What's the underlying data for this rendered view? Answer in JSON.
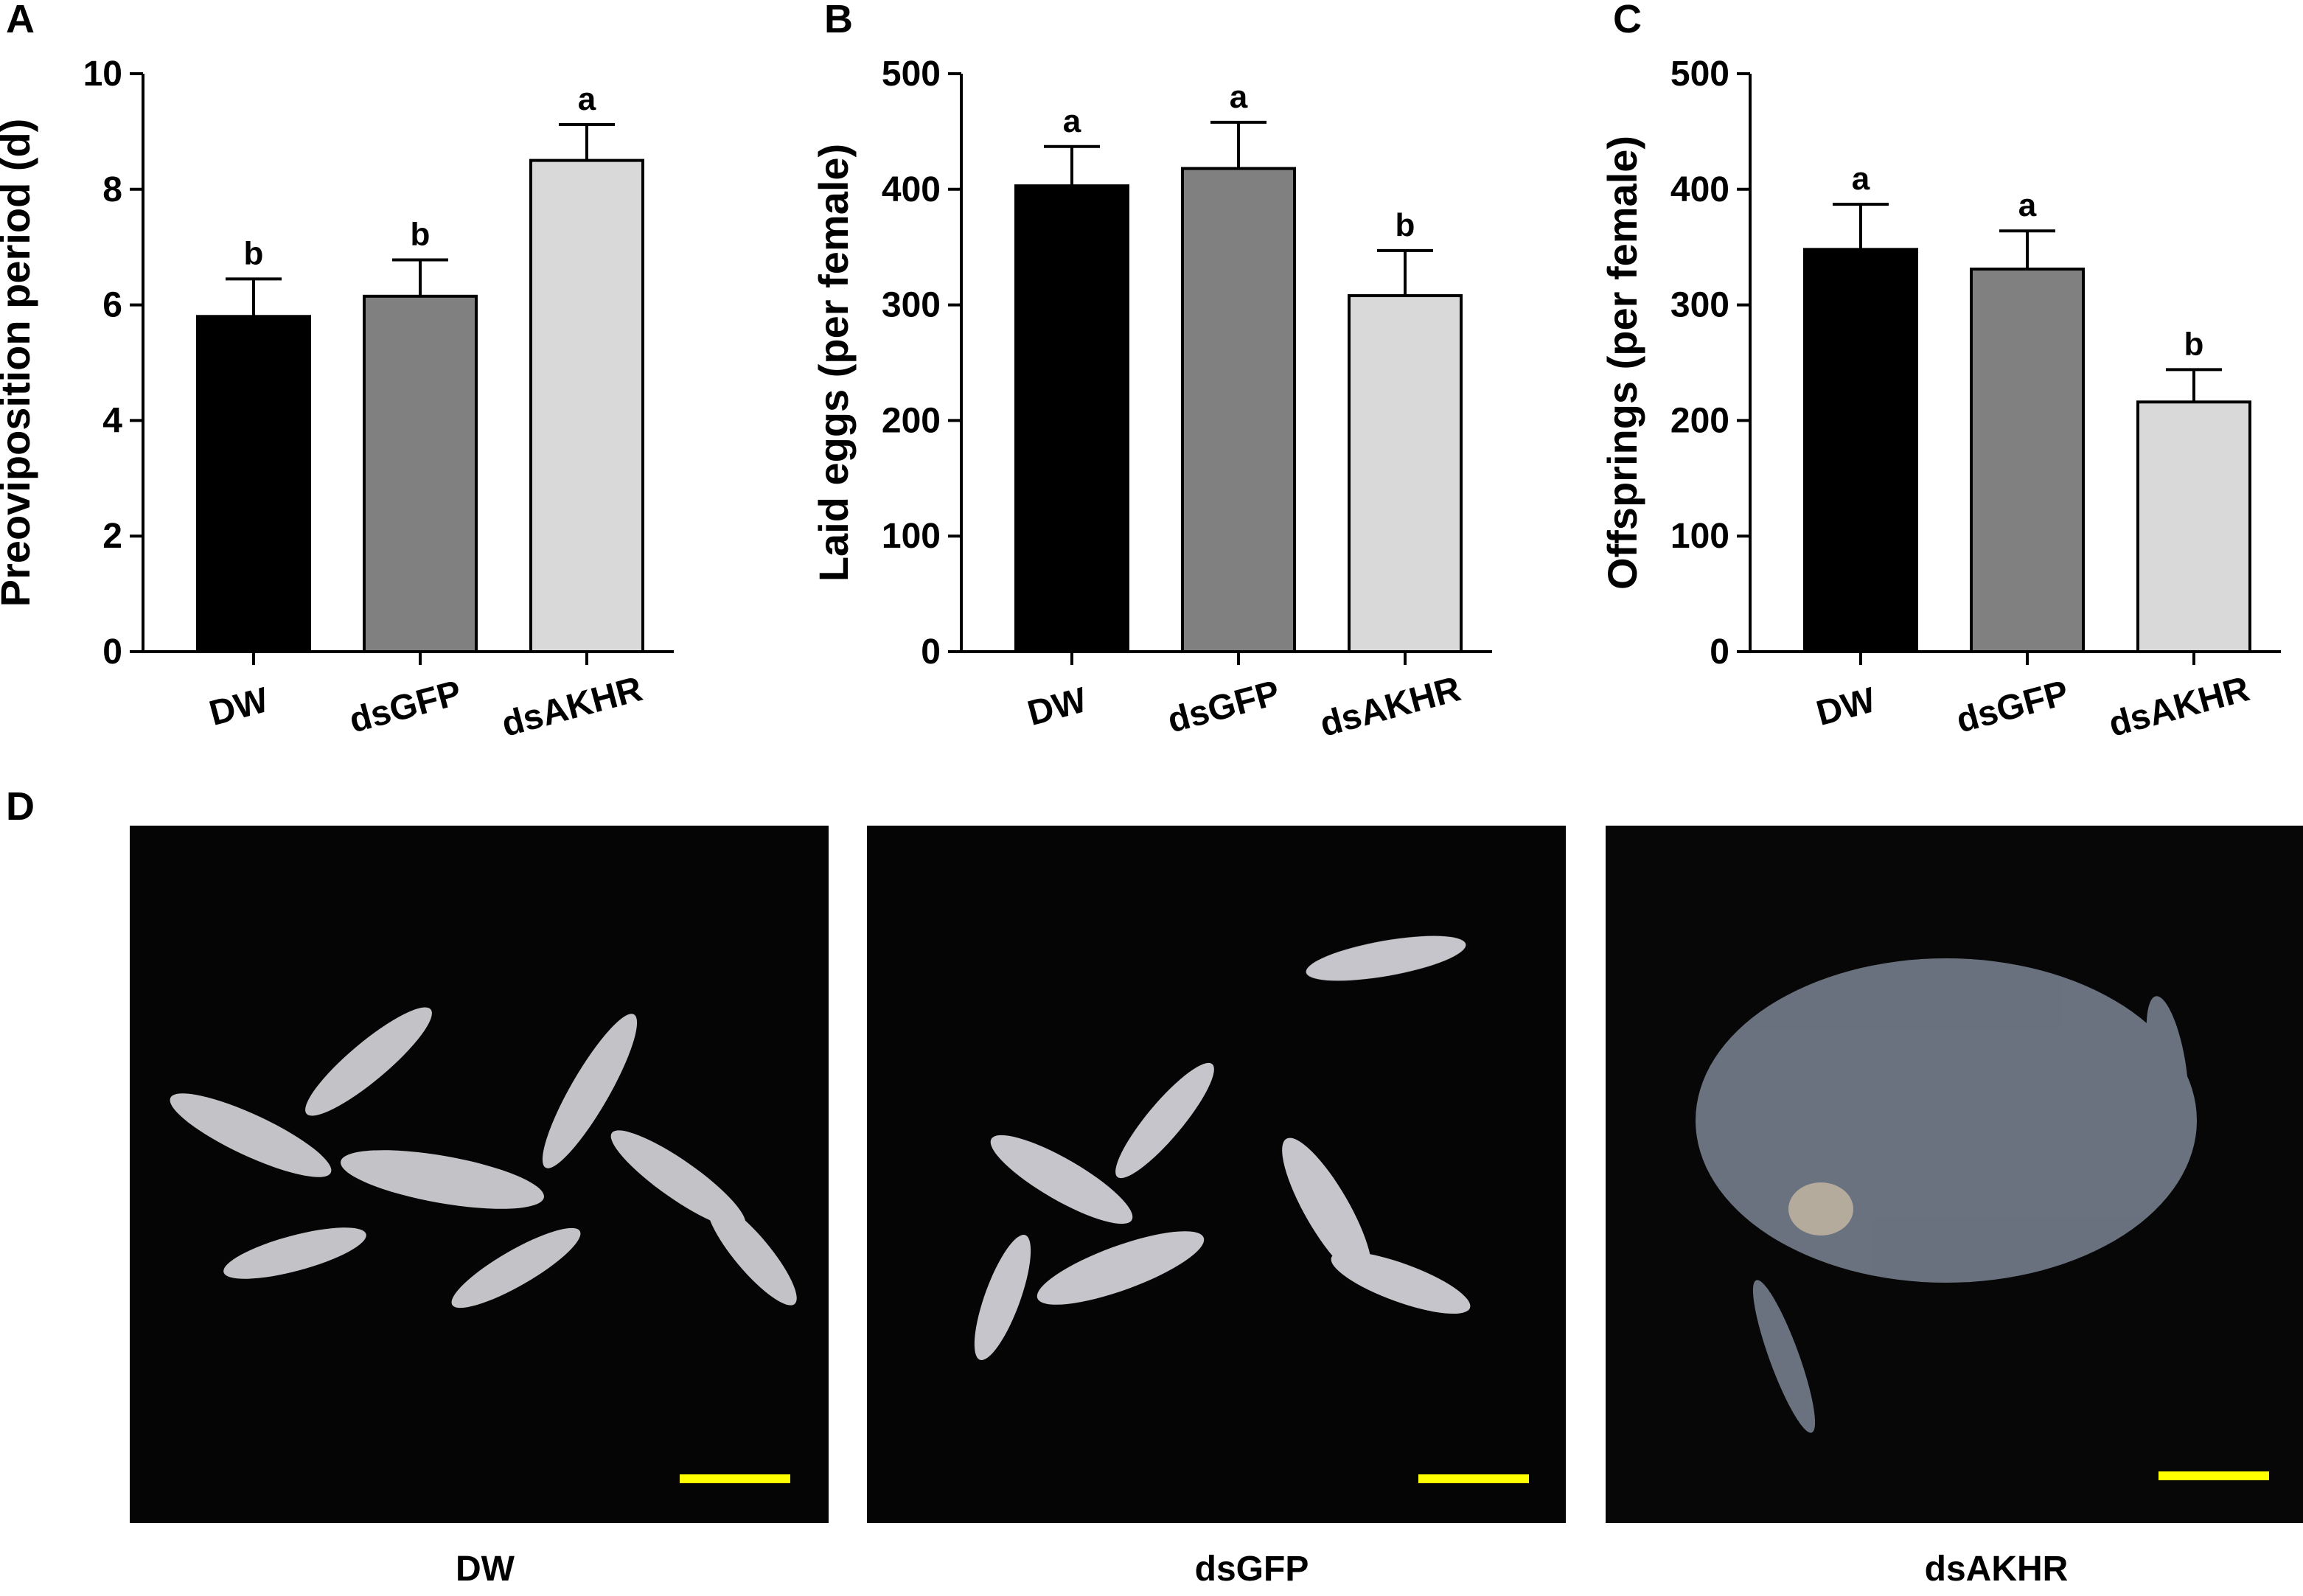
{
  "chart_data": [
    {
      "type": "bar",
      "panel": "A",
      "ylabel": "Preoviposition period (d)",
      "categories": [
        "DW",
        "dsGFP",
        "dsAKHR"
      ],
      "values": [
        5.8,
        6.15,
        8.5
      ],
      "errors": [
        0.65,
        0.63,
        0.62
      ],
      "annotations": [
        "b",
        "b",
        "a"
      ],
      "colors": [
        "#000000",
        "#808080",
        "#d9d9d9"
      ],
      "ylim": [
        0,
        10
      ],
      "yticks": [
        0,
        2,
        4,
        6,
        8,
        10
      ]
    },
    {
      "type": "bar",
      "panel": "B",
      "ylabel": "Laid eggs (per female)",
      "categories": [
        "DW",
        "dsGFP",
        "dsAKHR"
      ],
      "values": [
        403,
        418,
        308
      ],
      "errors": [
        34,
        40,
        39
      ],
      "annotations": [
        "a",
        "a",
        "b"
      ],
      "colors": [
        "#000000",
        "#808080",
        "#d9d9d9"
      ],
      "ylim": [
        0,
        500
      ],
      "yticks": [
        0,
        100,
        200,
        300,
        400,
        500
      ]
    },
    {
      "type": "bar",
      "panel": "C",
      "ylabel": "Offsprings (per female)",
      "categories": [
        "DW",
        "dsGFP",
        "dsAKHR"
      ],
      "values": [
        348,
        331,
        216
      ],
      "errors": [
        39,
        33,
        28
      ],
      "annotations": [
        "a",
        "a",
        "b"
      ],
      "colors": [
        "#000000",
        "#808080",
        "#d9d9d9"
      ],
      "ylim": [
        0,
        500
      ],
      "yticks": [
        0,
        100,
        200,
        300,
        400,
        500
      ]
    }
  ],
  "panel_d": {
    "label": "D",
    "captions": [
      "DW",
      "dsGFP",
      "dsAKHR"
    ]
  }
}
